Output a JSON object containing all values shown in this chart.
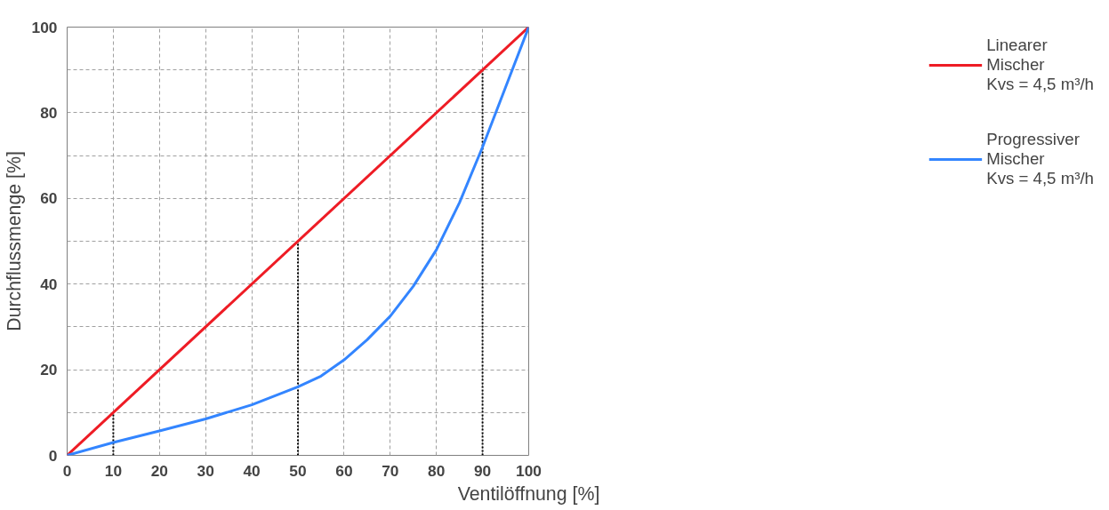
{
  "chart_data": {
    "type": "line",
    "xlabel": "Ventilöffnung [%]",
    "ylabel": "Durchflussmenge [%]",
    "xlim": [
      0,
      100
    ],
    "ylim": [
      0,
      100
    ],
    "xticks": [
      0,
      10,
      20,
      30,
      40,
      50,
      60,
      70,
      80,
      90,
      100
    ],
    "yticks": [
      0,
      {
        "value": 10,
        "label": null
      },
      20,
      {
        "value": 30,
        "label": null
      },
      40,
      {
        "value": 50,
        "label": null
      },
      60,
      {
        "value": 70,
        "label": null
      },
      80,
      {
        "value": 90,
        "label": null
      },
      100
    ],
    "grid": true,
    "legend": "right",
    "line_style": "solid",
    "marker": "none",
    "series": [
      {
        "name": "Linearer\nMischer\nKvs = 4,5 m³/h",
        "color": "#ee1c25",
        "x": [
          0,
          100
        ],
        "values": [
          0,
          100
        ]
      },
      {
        "name": "Progressiver\nMischer\nKvs = 4,5 m³/h",
        "color": "#3385ff",
        "x": [
          0,
          10,
          20,
          30,
          40,
          50,
          55,
          60,
          65,
          70,
          75,
          80,
          85,
          90,
          95,
          100
        ],
        "values": [
          0,
          3,
          5.7,
          8.5,
          11.8,
          16,
          18.5,
          22.3,
          27,
          32.5,
          39.5,
          48,
          59,
          72,
          86,
          100
        ]
      }
    ],
    "ref_lines": [
      {
        "axis": "x",
        "value": 10,
        "label": null,
        "color": "#000000",
        "line_style": "dotted"
      },
      {
        "axis": "x",
        "value": 50,
        "label": null,
        "color": "#000000",
        "line_style": "dotted"
      },
      {
        "axis": "x",
        "value": 90,
        "label": null,
        "color": "#000000",
        "line_style": "dotted"
      }
    ]
  }
}
